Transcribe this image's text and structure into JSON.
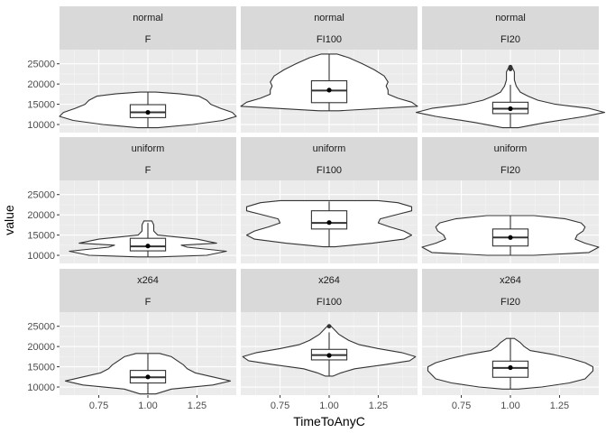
{
  "chart_data": {
    "type": "violin",
    "xlabel": "TimeToAnyC",
    "ylabel": "value",
    "xlim": [
      0.55,
      1.45
    ],
    "ylim": [
      8000,
      28500
    ],
    "x_ticks": [
      0.75,
      1.0,
      1.25
    ],
    "x_tick_labels": [
      "0.75",
      "1.00",
      "1.25"
    ],
    "y_ticks": [
      10000,
      15000,
      20000,
      25000
    ],
    "y_tick_labels": [
      "10000",
      "15000",
      "20000",
      "25000"
    ],
    "grid": true,
    "row_facets": [
      "normal",
      "uniform",
      "x264"
    ],
    "col_facets": [
      "F",
      "FI100",
      "FI20"
    ],
    "panels": [
      {
        "row": "normal",
        "col": "F",
        "violin": [
          [
            9200,
            0.05
          ],
          [
            10000,
            0.23
          ],
          [
            11000,
            0.38
          ],
          [
            12000,
            0.45
          ],
          [
            13000,
            0.43
          ],
          [
            14000,
            0.37
          ],
          [
            15000,
            0.32
          ],
          [
            16000,
            0.3
          ],
          [
            17000,
            0.26
          ],
          [
            17600,
            0.16
          ],
          [
            18000,
            0.04
          ]
        ],
        "box": {
          "min": 9200,
          "q1": 11700,
          "median": 13000,
          "q3": 14900,
          "max": 18000
        },
        "mean": 13000,
        "outliers": []
      },
      {
        "row": "normal",
        "col": "FI100",
        "violin": [
          [
            13400,
            0.05
          ],
          [
            14500,
            0.45
          ],
          [
            15500,
            0.42
          ],
          [
            16500,
            0.35
          ],
          [
            17500,
            0.3
          ],
          [
            18500,
            0.3
          ],
          [
            19500,
            0.29
          ],
          [
            20500,
            0.3
          ],
          [
            22000,
            0.28
          ],
          [
            23500,
            0.23
          ],
          [
            25000,
            0.17
          ],
          [
            26500,
            0.1
          ],
          [
            27400,
            0.04
          ]
        ],
        "box": {
          "min": 13400,
          "q1": 15400,
          "median": 18400,
          "q3": 20800,
          "max": 27400
        },
        "mean": 18500,
        "outliers": []
      },
      {
        "row": "normal",
        "col": "FI20",
        "violin": [
          [
            9200,
            0.04
          ],
          [
            10500,
            0.18
          ],
          [
            12000,
            0.38
          ],
          [
            13000,
            0.48
          ],
          [
            14000,
            0.4
          ],
          [
            15000,
            0.23
          ],
          [
            16000,
            0.14
          ],
          [
            17000,
            0.09
          ],
          [
            18000,
            0.05
          ],
          [
            19500,
            0.03
          ],
          [
            21000,
            0.02
          ],
          [
            23000,
            0.02
          ],
          [
            24000,
            0.01
          ]
        ],
        "box": {
          "min": 9200,
          "q1": 12700,
          "median": 13900,
          "q3": 15500,
          "max": 19800
        },
        "mean": 13900,
        "outliers": [
          23700,
          24200
        ]
      },
      {
        "row": "uniform",
        "col": "F",
        "violin": [
          [
            9600,
            0.05
          ],
          [
            10000,
            0.3
          ],
          [
            11000,
            0.4
          ],
          [
            12000,
            0.2
          ],
          [
            12500,
            0.17
          ],
          [
            13000,
            0.35
          ],
          [
            14000,
            0.25
          ],
          [
            15000,
            0.05
          ],
          [
            16000,
            0.03
          ],
          [
            17500,
            0.03
          ],
          [
            18500,
            0.02
          ]
        ],
        "box": {
          "min": 9600,
          "q1": 11100,
          "median": 12200,
          "q3": 14200,
          "max": 18000
        },
        "mean": 12300,
        "outliers": []
      },
      {
        "row": "uniform",
        "col": "FI100",
        "violin": [
          [
            12100,
            0.03
          ],
          [
            13000,
            0.22
          ],
          [
            14000,
            0.38
          ],
          [
            15000,
            0.42
          ],
          [
            16000,
            0.38
          ],
          [
            17000,
            0.31
          ],
          [
            18000,
            0.25
          ],
          [
            19000,
            0.26
          ],
          [
            20000,
            0.34
          ],
          [
            21000,
            0.42
          ],
          [
            22000,
            0.42
          ],
          [
            23000,
            0.35
          ],
          [
            23500,
            0.25
          ]
        ],
        "box": {
          "min": 12100,
          "q1": 16500,
          "median": 18000,
          "q3": 21000,
          "max": 23300
        },
        "mean": 18100,
        "outliers": []
      },
      {
        "row": "uniform",
        "col": "FI20",
        "violin": [
          [
            10000,
            0.12
          ],
          [
            10700,
            0.4
          ],
          [
            12000,
            0.45
          ],
          [
            13000,
            0.38
          ],
          [
            14000,
            0.33
          ],
          [
            15000,
            0.34
          ],
          [
            16000,
            0.37
          ],
          [
            17000,
            0.38
          ],
          [
            18000,
            0.36
          ],
          [
            19000,
            0.28
          ],
          [
            19800,
            0.12
          ]
        ],
        "box": {
          "min": 10000,
          "q1": 12300,
          "median": 14400,
          "q3": 16500,
          "max": 19800
        },
        "mean": 14400,
        "outliers": []
      },
      {
        "row": "x264",
        "col": "F",
        "violin": [
          [
            8300,
            0.04
          ],
          [
            9500,
            0.12
          ],
          [
            10500,
            0.33
          ],
          [
            11500,
            0.42
          ],
          [
            12500,
            0.33
          ],
          [
            13500,
            0.24
          ],
          [
            14500,
            0.2
          ],
          [
            15500,
            0.18
          ],
          [
            16500,
            0.15
          ],
          [
            17500,
            0.12
          ],
          [
            18300,
            0.06
          ]
        ],
        "box": {
          "min": 8300,
          "q1": 11000,
          "median": 12400,
          "q3": 14100,
          "max": 18300
        },
        "mean": 12500,
        "outliers": []
      },
      {
        "row": "x264",
        "col": "FI100",
        "violin": [
          [
            12700,
            0.02
          ],
          [
            13500,
            0.06
          ],
          [
            14500,
            0.13
          ],
          [
            15500,
            0.28
          ],
          [
            16500,
            0.41
          ],
          [
            17500,
            0.44
          ],
          [
            18500,
            0.37
          ],
          [
            19500,
            0.25
          ],
          [
            20500,
            0.15
          ],
          [
            21500,
            0.1
          ],
          [
            23000,
            0.05
          ],
          [
            24500,
            0.02
          ],
          [
            25000,
            0.01
          ]
        ],
        "box": {
          "min": 12800,
          "q1": 16700,
          "median": 17900,
          "q3": 19300,
          "max": 23500
        },
        "mean": 17800,
        "outliers": [
          25000
        ]
      },
      {
        "row": "x264",
        "col": "FI20",
        "violin": [
          [
            9500,
            0.04
          ],
          [
            10000,
            0.16
          ],
          [
            11000,
            0.3
          ],
          [
            12000,
            0.38
          ],
          [
            13000,
            0.4
          ],
          [
            14000,
            0.42
          ],
          [
            15000,
            0.42
          ],
          [
            16000,
            0.38
          ],
          [
            17000,
            0.31
          ],
          [
            18000,
            0.22
          ],
          [
            19000,
            0.1
          ],
          [
            20000,
            0.07
          ],
          [
            21000,
            0.05
          ],
          [
            22000,
            0.02
          ]
        ],
        "box": {
          "min": 9500,
          "q1": 12400,
          "median": 14700,
          "q3": 16400,
          "max": 22000
        },
        "mean": 14800,
        "outliers": []
      }
    ],
    "colors": {
      "panel_bg": "#ebebeb",
      "strip_bg": "#d9d9d9",
      "grid_major": "#ffffff",
      "grid_minor": "#f5f5f5",
      "violin_fill": "#ffffff",
      "line": "#333333",
      "point": "#000000",
      "outlier": "#333333"
    }
  }
}
